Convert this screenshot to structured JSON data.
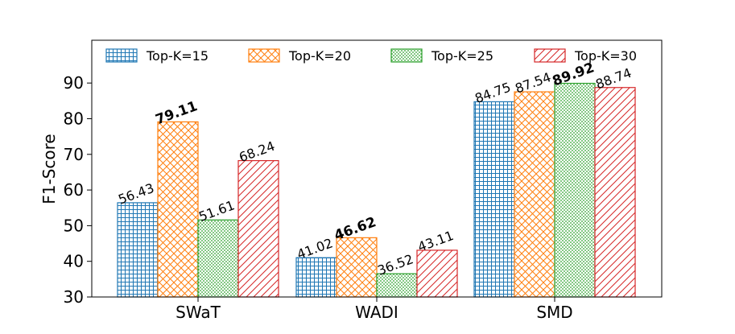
{
  "chart_data": {
    "type": "bar",
    "title": "",
    "xlabel": "",
    "ylabel": "F1-Score",
    "ylim": [
      30,
      102
    ],
    "yticks": [
      30,
      40,
      50,
      60,
      70,
      80,
      90
    ],
    "categories": [
      "SWaT",
      "WADI",
      "SMD"
    ],
    "legend_position": "top",
    "series": [
      {
        "name": "Top-K=15",
        "values": [
          56.43,
          41.02,
          84.75
        ],
        "color": "#1f77b4",
        "hatch": "grid"
      },
      {
        "name": "Top-K=20",
        "values": [
          79.11,
          46.62,
          87.54
        ],
        "color": "#ff7f0e",
        "hatch": "crosshatch"
      },
      {
        "name": "Top-K=25",
        "values": [
          51.61,
          36.52,
          89.92
        ],
        "color": "#2ca02c",
        "hatch": "dots"
      },
      {
        "name": "Top-K=30",
        "values": [
          68.24,
          43.11,
          88.74
        ],
        "color": "#d62728",
        "hatch": "diagonal"
      }
    ],
    "value_labels": [
      [
        "56.43",
        "41.02",
        "84.75"
      ],
      [
        "79.11",
        "46.62",
        "87.54"
      ],
      [
        "51.61",
        "36.52",
        "89.92"
      ],
      [
        "68.24",
        "43.11",
        "88.74"
      ]
    ],
    "best_per_category": [
      1,
      1,
      2
    ]
  }
}
